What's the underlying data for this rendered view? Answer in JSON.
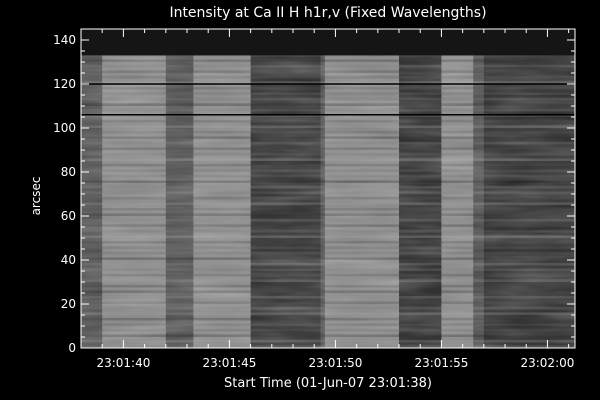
{
  "chart_data": {
    "type": "heatmap",
    "title": "Intensity at Ca II H h1r,v (Fixed Wavelengths)",
    "xlabel": "Start Time (01-Jun-07 23:01:38)",
    "ylabel": "arcsec",
    "x_ticks": [
      "23:01:40",
      "23:01:45",
      "23:01:50",
      "23:01:55",
      "23:02:00"
    ],
    "x_tick_seconds": [
      2,
      7,
      12,
      17,
      22
    ],
    "xlim_seconds": [
      0,
      23.3
    ],
    "y_ticks": [
      0,
      20,
      40,
      60,
      80,
      100,
      120,
      140
    ],
    "ylim": [
      0,
      145
    ],
    "colormap": "grayscale",
    "features": {
      "dark_band_y": [
        133,
        145
      ],
      "horizontal_lines_y": [
        106,
        120
      ],
      "bright_columns_seconds": [
        [
          1.0,
          4.0
        ],
        [
          5.3,
          8.0
        ],
        [
          11.5,
          15.0
        ],
        [
          17.0,
          18.5
        ]
      ],
      "dark_columns_seconds": [
        [
          8.0,
          11.3
        ],
        [
          15.0,
          17.0
        ],
        [
          19.0,
          23.3
        ]
      ]
    }
  }
}
